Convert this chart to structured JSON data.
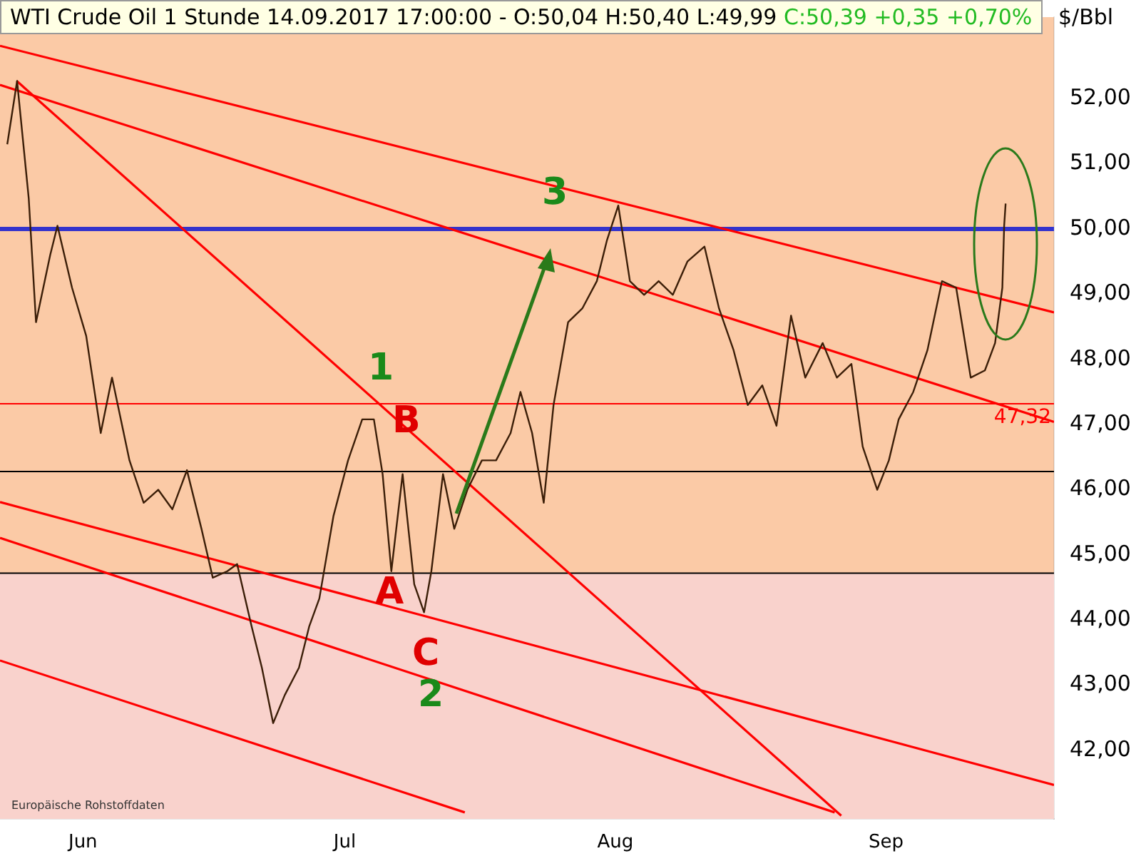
{
  "chart_data": {
    "type": "line",
    "title": "WTI Crude Oil 1 Stunde",
    "subtitle": "14.09.2017 17:00:00 - O:50,04 H:50,40 L:49,99",
    "ylabel": "$/Bbl",
    "marker": "none",
    "annotations": [
      "C:50,39 +0,35 +0,70%",
      "Europäische Rohstoffdaten",
      "1",
      "B",
      "A",
      "C",
      "2",
      "3"
    ],
    "xlim": [
      "2017-05-22T12:00",
      "2017-09-20T06:00"
    ],
    "xticks": [
      {
        "value": "2017-06-01",
        "label": "Jun"
      },
      {
        "value": "2017-07-01",
        "label": "Jul"
      },
      {
        "value": "2017-08-01",
        "label": "Aug"
      },
      {
        "value": "2017-09-01",
        "label": "Sep"
      }
    ],
    "ylim": [
      40.95,
      53.25
    ],
    "yticks": [
      {
        "value": 42,
        "label": "42,00"
      },
      {
        "value": 43,
        "label": "43,00"
      },
      {
        "value": 44,
        "label": "44,00"
      },
      {
        "value": 45,
        "label": "45,00"
      },
      {
        "value": 46,
        "label": "46,00"
      },
      {
        "value": 47,
        "label": "47,00"
      },
      {
        "value": 48,
        "label": "48,00"
      },
      {
        "value": 49,
        "label": "49,00"
      },
      {
        "value": 50,
        "label": "50,00"
      },
      {
        "value": 51,
        "label": "51,00"
      },
      {
        "value": 52,
        "label": "52,00"
      }
    ],
    "ref_lines": [
      {
        "axis": "y",
        "value": 50,
        "color": "#3333cc"
      },
      {
        "axis": "y",
        "value": 47.32,
        "label": "47,32",
        "color": "#ff0000"
      },
      {
        "axis": "y",
        "value": 46.28,
        "color": "#000000"
      },
      {
        "axis": "y",
        "value": 44.72,
        "color": "#000000"
      }
    ],
    "bands": [
      {
        "axis": "y",
        "from": 40.95,
        "to": 44.72,
        "color": "#f9d2cc"
      }
    ],
    "series": [
      {
        "color": "#3b1e08",
        "x": [
          "2017-05-23T08:00",
          "2017-05-24T11:00",
          "2017-05-25T19:00",
          "2017-05-26T15:00",
          "2017-05-28T06:00",
          "2017-05-29T02:00",
          "2017-05-30T18:00",
          "2017-06-01T09:00",
          "2017-06-03T01:00",
          "2017-06-04T08:00",
          "2017-06-06T08:00",
          "2017-06-07T23:00",
          "2017-06-09T15:00",
          "2017-06-11T06:00",
          "2017-06-12T22:00",
          "2017-06-14T14:00",
          "2017-06-15T21:00",
          "2017-06-17T13:00",
          "2017-06-18T16:00",
          "2017-06-20T08:00",
          "2017-06-21T12:00",
          "2017-06-22T19:00",
          "2017-06-24T03:00",
          "2017-06-25T18:00",
          "2017-06-26T22:00",
          "2017-06-28T02:00",
          "2017-06-29T17:00",
          "2017-07-01T09:00",
          "2017-07-03T00:00",
          "2017-07-04T08:00",
          "2017-07-05T08:00",
          "2017-07-06T08:00",
          "2017-07-07T15:00",
          "2017-07-08T23:00",
          "2017-07-10T02:00",
          "2017-07-10T22:00",
          "2017-07-12T06:00",
          "2017-07-13T13:00",
          "2017-07-15T01:00",
          "2017-07-16T17:00",
          "2017-07-18T08:00",
          "2017-07-20T00:00",
          "2017-07-21T03:00",
          "2017-07-22T11:00",
          "2017-07-23T19:00",
          "2017-07-24T22:00",
          "2017-07-26T14:00",
          "2017-07-28T05:00",
          "2017-07-29T21:00",
          "2017-07-31T01:00",
          "2017-08-01T08:00",
          "2017-08-02T16:00",
          "2017-08-04T07:00",
          "2017-08-05T23:00",
          "2017-08-07T14:00",
          "2017-08-09T06:00",
          "2017-08-11T05:00",
          "2017-08-12T21:00",
          "2017-08-14T13:00",
          "2017-08-16T04:00",
          "2017-08-17T20:00",
          "2017-08-19T11:00",
          "2017-08-21T03:00",
          "2017-08-22T18:00",
          "2017-08-24T18:00",
          "2017-08-26T09:00",
          "2017-08-28T01:00",
          "2017-08-29T08:00",
          "2017-08-31T00:00",
          "2017-09-01T08:00",
          "2017-09-02T11:00",
          "2017-09-04T03:00",
          "2017-09-05T18:00",
          "2017-09-07T10:00",
          "2017-09-09T01:00",
          "2017-09-10T17:00",
          "2017-09-12T08:00",
          "2017-09-13T12:00",
          "2017-09-14T08:00",
          "2017-09-14T13:00",
          "2017-09-14T17:00"
        ],
        "values": [
          51.3,
          52.27,
          50.47,
          48.57,
          49.6,
          50.05,
          49.1,
          48.36,
          46.87,
          47.72,
          46.45,
          45.8,
          46.0,
          45.7,
          46.3,
          45.4,
          44.65,
          44.75,
          44.86,
          43.9,
          43.27,
          42.42,
          42.85,
          43.27,
          43.9,
          44.33,
          45.6,
          46.45,
          47.08,
          47.08,
          46.24,
          44.75,
          46.24,
          44.55,
          44.12,
          44.75,
          46.24,
          45.4,
          46.0,
          46.45,
          46.45,
          46.87,
          47.5,
          46.87,
          45.8,
          47.3,
          48.57,
          48.78,
          49.2,
          49.83,
          50.36,
          49.2,
          48.99,
          49.2,
          48.99,
          49.5,
          49.73,
          48.78,
          48.14,
          47.3,
          47.6,
          46.98,
          48.67,
          47.72,
          48.25,
          47.72,
          47.93,
          46.66,
          46.0,
          46.45,
          47.08,
          47.5,
          48.14,
          49.2,
          49.1,
          47.72,
          47.83,
          48.25,
          49.1,
          50.05,
          50.39
        ]
      },
      {
        "type": "line",
        "color": "#ff0000",
        "x": [
          "2017-05-22T12:00",
          "2017-09-20T06:00"
        ],
        "values": [
          52.81,
          48.72
        ]
      },
      {
        "type": "line",
        "color": "#ff0000",
        "x": [
          "2017-05-22T12:00",
          "2017-09-20T06:00"
        ],
        "values": [
          52.21,
          47.04
        ]
      },
      {
        "type": "line",
        "color": "#ff0000",
        "x": [
          "2017-05-24T10:00",
          "2017-08-26T21:00"
        ],
        "values": [
          52.27,
          41.0
        ]
      },
      {
        "type": "line",
        "color": "#ff0000",
        "x": [
          "2017-05-22T12:00",
          "2017-09-20T06:00"
        ],
        "values": [
          45.81,
          41.47
        ]
      },
      {
        "type": "line",
        "color": "#ff0000",
        "x": [
          "2017-05-22T12:00",
          "2017-08-26T03:00"
        ],
        "values": [
          45.26,
          41.05
        ]
      },
      {
        "type": "line",
        "color": "#ff0000",
        "x": [
          "2017-05-22T12:00",
          "2017-07-14T18:00"
        ],
        "values": [
          43.38,
          41.05
        ]
      }
    ]
  }
}
